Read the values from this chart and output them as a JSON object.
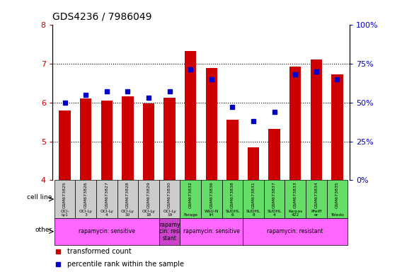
{
  "title": "GDS4236 / 7986049",
  "samples": [
    "GSM673825",
    "GSM673826",
    "GSM673827",
    "GSM673828",
    "GSM673829",
    "GSM673830",
    "GSM673832",
    "GSM673836",
    "GSM673838",
    "GSM673831",
    "GSM673837",
    "GSM673833",
    "GSM673834",
    "GSM673835"
  ],
  "bar_values": [
    5.8,
    6.1,
    6.05,
    6.15,
    5.97,
    6.12,
    7.31,
    6.88,
    5.55,
    4.85,
    5.32,
    6.92,
    7.1,
    6.71
  ],
  "dot_values": [
    50,
    55,
    57,
    57,
    53,
    57,
    71,
    65,
    47,
    38,
    44,
    68,
    70,
    65
  ],
  "ylim": [
    4,
    8
  ],
  "y2lim": [
    0,
    100
  ],
  "yticks": [
    4,
    5,
    6,
    7,
    8
  ],
  "y2ticks": [
    0,
    25,
    50,
    75,
    100
  ],
  "y2ticklabels": [
    "0%",
    "25%",
    "50%",
    "75%",
    "100%"
  ],
  "bar_color": "#cc0000",
  "dot_color": "#0000cc",
  "cell_lines": [
    "OCI-\nLy1",
    "OCI-Ly\n3",
    "OCI-Ly\n4",
    "OCI-Ly\n10",
    "OCI-Ly\n18",
    "OCI-Ly\n19",
    "Farage",
    "WSU-N\nIH",
    "SUDHL\n6",
    "SUDHL\n8",
    "SUDHL\n4",
    "Karpas\n422",
    "Pfeiff\ner",
    "Toledo"
  ],
  "cell_line_colors": [
    "#cccccc",
    "#cccccc",
    "#cccccc",
    "#cccccc",
    "#cccccc",
    "#cccccc",
    "#66dd66",
    "#66dd66",
    "#66dd66",
    "#66dd66",
    "#66dd66",
    "#66dd66",
    "#66dd66",
    "#66dd66"
  ],
  "other_groups": [
    {
      "label": "rapamycin: sensitive",
      "xstart": -0.5,
      "xend": 4.5,
      "color": "#ff66ff"
    },
    {
      "label": "rapamy\ncin: resi\nstant",
      "xstart": 4.5,
      "xend": 5.5,
      "color": "#cc44cc"
    },
    {
      "label": "rapamycin: sensitive",
      "xstart": 5.5,
      "xend": 8.5,
      "color": "#ff66ff"
    },
    {
      "label": "rapamycin: resistant",
      "xstart": 8.5,
      "xend": 13.5,
      "color": "#ff66ff"
    }
  ],
  "legend_items": [
    {
      "label": "transformed count",
      "color": "#cc0000"
    },
    {
      "label": "percentile rank within the sample",
      "color": "#0000cc"
    }
  ],
  "title_fontsize": 10,
  "axis_color_left": "#cc0000",
  "axis_color_right": "#0000cc"
}
